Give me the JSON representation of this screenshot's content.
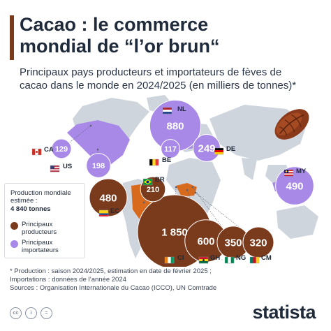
{
  "header": {
    "title_lines": [
      "Cacao : le commerce",
      "mondial de “l’or brun“"
    ],
    "subtitle_lines": [
      "Principaux pays producteurs et importateurs de fèves de",
      "cacao dans le monde en 2024/2025 (en milliers de tonnes)*"
    ]
  },
  "info": {
    "production_lines": [
      "Production mondiale",
      "estimée :"
    ],
    "production_total": "4 840 tonnes",
    "legend_producers_lines": [
      "Principaux",
      "producteurs"
    ],
    "legend_importers_lines": [
      "Principaux",
      "importateurs"
    ]
  },
  "colors": {
    "producer": "#7a3a1c",
    "importer": "#a889e8",
    "producer_country_fill": "#d86a1e",
    "importer_country_fill": "#a889e8",
    "land": "#cfd5dd",
    "accent": "#7a3a1c"
  },
  "chart_data": {
    "type": "map",
    "units": "milliers de tonnes",
    "producers": [
      {
        "code": "CI",
        "value": 1850,
        "flag": "ci-flag-icon"
      },
      {
        "code": "GH",
        "value": 600,
        "flag": "gh-flag-icon"
      },
      {
        "code": "EC",
        "value": 480,
        "flag": "ec-flag-icon"
      },
      {
        "code": "NG",
        "value": 350,
        "flag": "ng-flag-icon"
      },
      {
        "code": "CM",
        "value": 320,
        "flag": "cm-flag-icon"
      },
      {
        "code": "BR",
        "value": 210,
        "flag": "br-flag-icon"
      }
    ],
    "importers": [
      {
        "code": "NL",
        "value": 880,
        "flag": "nl-flag-icon"
      },
      {
        "code": "MY",
        "value": 490,
        "flag": "my-flag-icon"
      },
      {
        "code": "DE",
        "value": 249,
        "flag": "de-flag-icon"
      },
      {
        "code": "US",
        "value": 198,
        "flag": "us-flag-icon"
      },
      {
        "code": "CA",
        "value": 129,
        "flag": "ca-flag-icon"
      },
      {
        "code": "BE",
        "value": 117,
        "flag": "be-flag-icon"
      }
    ]
  },
  "footnote_lines": [
    "* Production : saison 2024/2025, estimation en date de février 2025 ;",
    "   Importations : données de l’année 2024",
    "Sources : Organisation Internationale du Cacao (ICCO), UN Comtrade"
  ],
  "footer": {
    "brand": "statista",
    "icons": [
      "cc-icon",
      "by-icon",
      "nd-icon"
    ]
  }
}
